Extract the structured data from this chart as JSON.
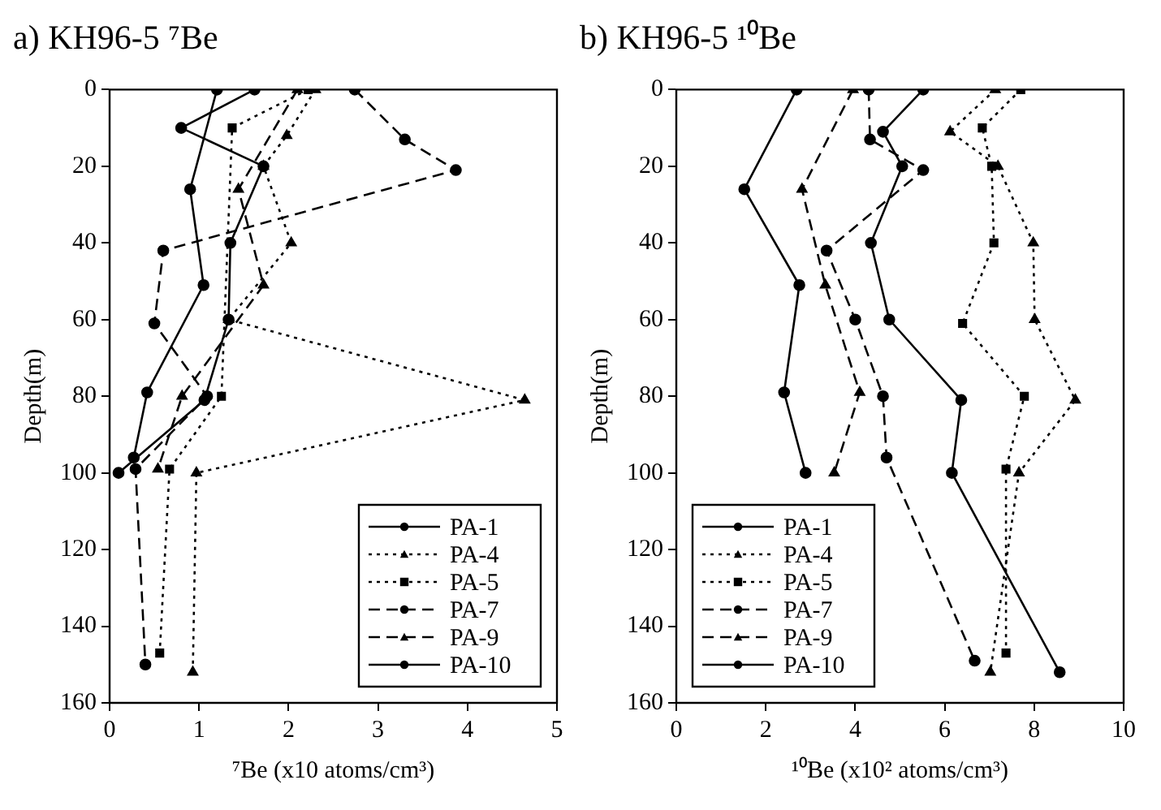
{
  "chart_data": [
    {
      "type": "line",
      "title": "a) KH96-5 ⁷Be",
      "xlabel": "⁷Be (x10 atoms/cm³)",
      "ylabel": "Depth(m)",
      "xlim": [
        0,
        5
      ],
      "xticks": [
        0,
        1,
        2,
        3,
        4,
        5
      ],
      "ylim": [
        160,
        0
      ],
      "yticks": [
        0,
        20,
        40,
        60,
        80,
        100,
        120,
        140,
        160
      ],
      "legend": "bottom right",
      "grid": false,
      "series": [
        {
          "name": "PA-1",
          "color": "#000000",
          "marker": "circle",
          "line_style": "solid",
          "x": [
            1.62,
            0.8,
            1.72,
            1.35,
            1.33,
            1.06,
            0.1
          ],
          "values": [
            0,
            10,
            20,
            40,
            60,
            81,
            100
          ]
        },
        {
          "name": "PA-4",
          "color": "#000000",
          "marker": "triangle",
          "line_style": "dotted",
          "x": [
            2.3,
            1.98,
            1.72,
            2.03,
            1.33,
            4.64,
            0.97,
            0.93
          ],
          "values": [
            0,
            12,
            20,
            40,
            60,
            81,
            100,
            152
          ]
        },
        {
          "name": "PA-5",
          "color": "#000000",
          "marker": "square",
          "line_style": "dotted",
          "x": [
            2.22,
            1.37,
            1.25,
            0.67,
            0.56
          ],
          "values": [
            0,
            10,
            80,
            99,
            147
          ]
        },
        {
          "name": "PA-7",
          "color": "#000000",
          "marker": "circle",
          "line_style": "dashed",
          "x": [
            2.74,
            3.3,
            3.87,
            0.6,
            0.5,
            1.09,
            0.29,
            0.4
          ],
          "values": [
            0,
            13,
            21,
            42,
            61,
            80,
            99,
            150
          ]
        },
        {
          "name": "PA-9",
          "color": "#000000",
          "marker": "triangle",
          "line_style": "dashed",
          "x": [
            2.1,
            1.44,
            1.72,
            0.81,
            0.54
          ],
          "values": [
            0,
            26,
            51,
            80,
            99
          ]
        },
        {
          "name": "PA-10",
          "color": "#000000",
          "marker": "circle",
          "line_style": "solid",
          "x": [
            1.2,
            0.9,
            1.05,
            0.42,
            0.27
          ],
          "values": [
            0,
            26,
            51,
            79,
            96
          ]
        }
      ]
    },
    {
      "type": "line",
      "title": "b) KH96-5 ¹⁰Be",
      "xlabel": "¹⁰Be (x10² atoms/cm³)",
      "ylabel": "Depth(m)",
      "xlim": [
        0,
        10
      ],
      "xticks": [
        0,
        2,
        4,
        6,
        8,
        10
      ],
      "ylim": [
        160,
        0
      ],
      "yticks": [
        0,
        20,
        40,
        60,
        80,
        100,
        120,
        140,
        160
      ],
      "legend": "bottom left",
      "grid": false,
      "series": [
        {
          "name": "PA-1",
          "color": "#000000",
          "marker": "circle",
          "line_style": "solid",
          "x": [
            5.52,
            4.62,
            5.05,
            4.35,
            4.76,
            6.37,
            6.16,
            8.57
          ],
          "values": [
            0,
            11,
            20,
            40,
            60,
            81,
            100,
            152
          ]
        },
        {
          "name": "PA-4",
          "color": "#000000",
          "marker": "triangle",
          "line_style": "dotted",
          "x": [
            7.13,
            6.12,
            7.19,
            7.98,
            8.01,
            8.92,
            7.66,
            7.02
          ],
          "values": [
            0,
            11,
            20,
            40,
            60,
            81,
            100,
            152
          ]
        },
        {
          "name": "PA-5",
          "color": "#000000",
          "marker": "square",
          "line_style": "dotted",
          "x": [
            7.7,
            6.84,
            7.05,
            7.1,
            6.4,
            7.78,
            7.37,
            7.37
          ],
          "values": [
            0,
            10,
            20,
            40,
            61,
            80,
            99,
            147
          ]
        },
        {
          "name": "PA-7",
          "color": "#000000",
          "marker": "circle",
          "line_style": "dashed",
          "x": [
            4.3,
            4.33,
            5.52,
            3.36,
            4.0,
            4.62,
            4.7,
            6.67
          ],
          "values": [
            0,
            13,
            21,
            42,
            60,
            80,
            96,
            149
          ]
        },
        {
          "name": "PA-9",
          "color": "#000000",
          "marker": "triangle",
          "line_style": "dashed",
          "x": [
            3.95,
            2.81,
            3.33,
            4.1,
            3.53
          ],
          "values": [
            0,
            26,
            51,
            79,
            100
          ]
        },
        {
          "name": "PA-10",
          "color": "#000000",
          "marker": "circle",
          "line_style": "solid",
          "x": [
            2.69,
            1.52,
            2.75,
            2.41,
            2.89
          ],
          "values": [
            0,
            26,
            51,
            79,
            100
          ]
        }
      ]
    }
  ]
}
